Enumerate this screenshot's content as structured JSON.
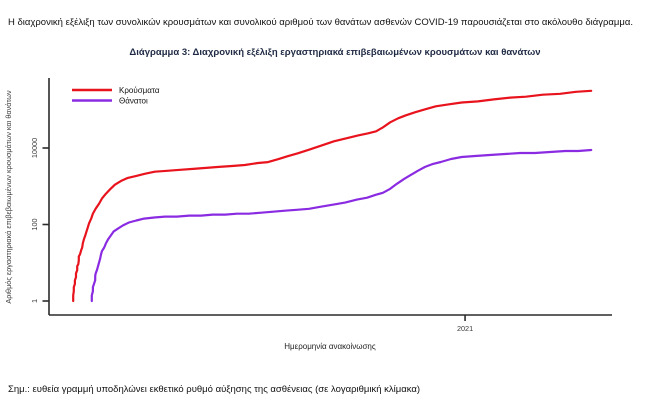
{
  "page": {
    "intro": "Η διαχρονική εξέλιξη των συνολικών κρουσμάτων και συνολικού αριθμού των θανάτων ασθενών COVID-19 παρουσιάζεται στο ακόλουθο διάγραμμα.",
    "note": "Σημ.: ευθεία γραμμή υποδηλώνει εκθετικό ρυθμό αύξησης της ασθένειας (σε λογαριθμική κλίμακα)"
  },
  "chart": {
    "title": "Διάγραμμα 3: Διαχρονική εξέλιξη εργαστηριακά επιβεβαιωμένων κρουσμάτων και θανάτων",
    "x_label": "Ημερομηνία ανακοίνωσης",
    "y_label": "Αριθμός εργαστηριακά επιβεβαιωμένων κρουσμάτων και θανάτων"
  },
  "chart_data": {
    "type": "line",
    "y_scale": "log",
    "x_axis": "Ημερομηνία ανακοίνωσης (Φεβ 2020 – Ιούν 2021)",
    "y_ticks": [
      1,
      100,
      10000
    ],
    "y_tick_labels": [
      "1",
      "100",
      "10000"
    ],
    "x_tick_labels": [
      "2021"
    ],
    "x_tick_positions": [
      0.739
    ],
    "legend_position": "top-left",
    "grid": false,
    "axis_color": "#2b2b2b",
    "series": [
      {
        "name": "Κρούσματα",
        "color": "#e8131d",
        "points": [
          [
            0.043,
            1
          ],
          [
            0.043,
            1.4
          ],
          [
            0.044,
            1.8
          ],
          [
            0.044,
            2.3
          ],
          [
            0.046,
            2.8
          ],
          [
            0.046,
            3.5
          ],
          [
            0.048,
            4.2
          ],
          [
            0.048,
            5.3
          ],
          [
            0.05,
            6.4
          ],
          [
            0.05,
            8.1
          ],
          [
            0.052,
            9.2
          ],
          [
            0.053,
            11.6
          ],
          [
            0.053,
            14.7
          ],
          [
            0.055,
            16.6
          ],
          [
            0.057,
            21
          ],
          [
            0.059,
            25
          ],
          [
            0.06,
            32
          ],
          [
            0.062,
            41
          ],
          [
            0.064,
            49
          ],
          [
            0.066,
            62
          ],
          [
            0.069,
            84
          ],
          [
            0.071,
            107
          ],
          [
            0.075,
            143
          ],
          [
            0.078,
            193
          ],
          [
            0.083,
            261
          ],
          [
            0.089,
            352
          ],
          [
            0.094,
            475
          ],
          [
            0.101,
            639
          ],
          [
            0.108,
            815
          ],
          [
            0.117,
            1100
          ],
          [
            0.128,
            1380
          ],
          [
            0.14,
            1650
          ],
          [
            0.155,
            1870
          ],
          [
            0.17,
            2120
          ],
          [
            0.188,
            2400
          ],
          [
            0.21,
            2540
          ],
          [
            0.233,
            2690
          ],
          [
            0.256,
            2850
          ],
          [
            0.279,
            3020
          ],
          [
            0.302,
            3200
          ],
          [
            0.325,
            3390
          ],
          [
            0.348,
            3590
          ],
          [
            0.371,
            4050
          ],
          [
            0.389,
            4290
          ],
          [
            0.407,
            5110
          ],
          [
            0.424,
            6090
          ],
          [
            0.442,
            7260
          ],
          [
            0.464,
            9240
          ],
          [
            0.485,
            11800
          ],
          [
            0.506,
            15000
          ],
          [
            0.528,
            17900
          ],
          [
            0.549,
            21400
          ],
          [
            0.567,
            24200
          ],
          [
            0.581,
            27300
          ],
          [
            0.593,
            34600
          ],
          [
            0.606,
            46900
          ],
          [
            0.62,
            59800
          ],
          [
            0.634,
            71700
          ],
          [
            0.65,
            85900
          ],
          [
            0.668,
            103000
          ],
          [
            0.687,
            123000
          ],
          [
            0.709,
            138000
          ],
          [
            0.733,
            155000
          ],
          [
            0.762,
            165000
          ],
          [
            0.79,
            186000
          ],
          [
            0.819,
            208000
          ],
          [
            0.847,
            220000
          ],
          [
            0.877,
            247000
          ],
          [
            0.908,
            261000
          ],
          [
            0.936,
            294000
          ],
          [
            0.963,
            312000
          ]
        ]
      },
      {
        "name": "Θάνατοι",
        "color": "#8a2be2",
        "points": [
          [
            0.076,
            1
          ],
          [
            0.076,
            1.4
          ],
          [
            0.078,
            1.8
          ],
          [
            0.078,
            2.3
          ],
          [
            0.08,
            2.8
          ],
          [
            0.082,
            3.5
          ],
          [
            0.082,
            4.5
          ],
          [
            0.083,
            5.3
          ],
          [
            0.085,
            6.4
          ],
          [
            0.087,
            8.1
          ],
          [
            0.089,
            10.3
          ],
          [
            0.091,
            13
          ],
          [
            0.092,
            15.7
          ],
          [
            0.094,
            20
          ],
          [
            0.098,
            25
          ],
          [
            0.101,
            32
          ],
          [
            0.105,
            41
          ],
          [
            0.11,
            52
          ],
          [
            0.115,
            66
          ],
          [
            0.123,
            79
          ],
          [
            0.131,
            94
          ],
          [
            0.142,
            113
          ],
          [
            0.155,
            127
          ],
          [
            0.169,
            143
          ],
          [
            0.187,
            152
          ],
          [
            0.206,
            161
          ],
          [
            0.227,
            161
          ],
          [
            0.249,
            171
          ],
          [
            0.27,
            171
          ],
          [
            0.291,
            181
          ],
          [
            0.313,
            181
          ],
          [
            0.334,
            192
          ],
          [
            0.355,
            192
          ],
          [
            0.377,
            204
          ],
          [
            0.398,
            216
          ],
          [
            0.419,
            229
          ],
          [
            0.44,
            243
          ],
          [
            0.462,
            258
          ],
          [
            0.483,
            292
          ],
          [
            0.504,
            330
          ],
          [
            0.526,
            374
          ],
          [
            0.547,
            448
          ],
          [
            0.565,
            503
          ],
          [
            0.581,
            600
          ],
          [
            0.593,
            676
          ],
          [
            0.606,
            860
          ],
          [
            0.618,
            1160
          ],
          [
            0.631,
            1570
          ],
          [
            0.643,
            1990
          ],
          [
            0.655,
            2530
          ],
          [
            0.668,
            3210
          ],
          [
            0.682,
            3840
          ],
          [
            0.696,
            4310
          ],
          [
            0.714,
            5150
          ],
          [
            0.733,
            5810
          ],
          [
            0.757,
            6170
          ],
          [
            0.783,
            6550
          ],
          [
            0.81,
            6960
          ],
          [
            0.837,
            7390
          ],
          [
            0.863,
            7390
          ],
          [
            0.89,
            7840
          ],
          [
            0.917,
            8330
          ],
          [
            0.94,
            8330
          ],
          [
            0.963,
            8840
          ]
        ]
      }
    ]
  }
}
